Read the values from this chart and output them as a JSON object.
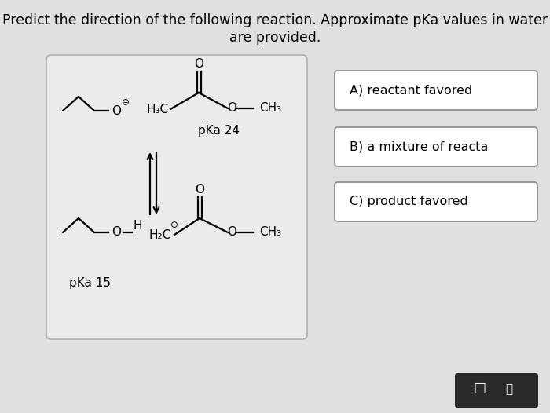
{
  "title_line1": "Predict the direction of the following reaction. Approximate pKa values in water",
  "title_line2": "are provided.",
  "title_fontsize": 12.5,
  "bg_color": "#e0e0e0",
  "box_bg": "#ececec",
  "text_color": "#000000",
  "pka_top": "pKa 24",
  "pka_bottom": "pKa 15",
  "choices": [
    "A) reactant favored",
    "B) a mixture of reacta",
    "C) product favored"
  ],
  "choice_fontsize": 11.5,
  "toolbar_color": "#2a2a2a"
}
